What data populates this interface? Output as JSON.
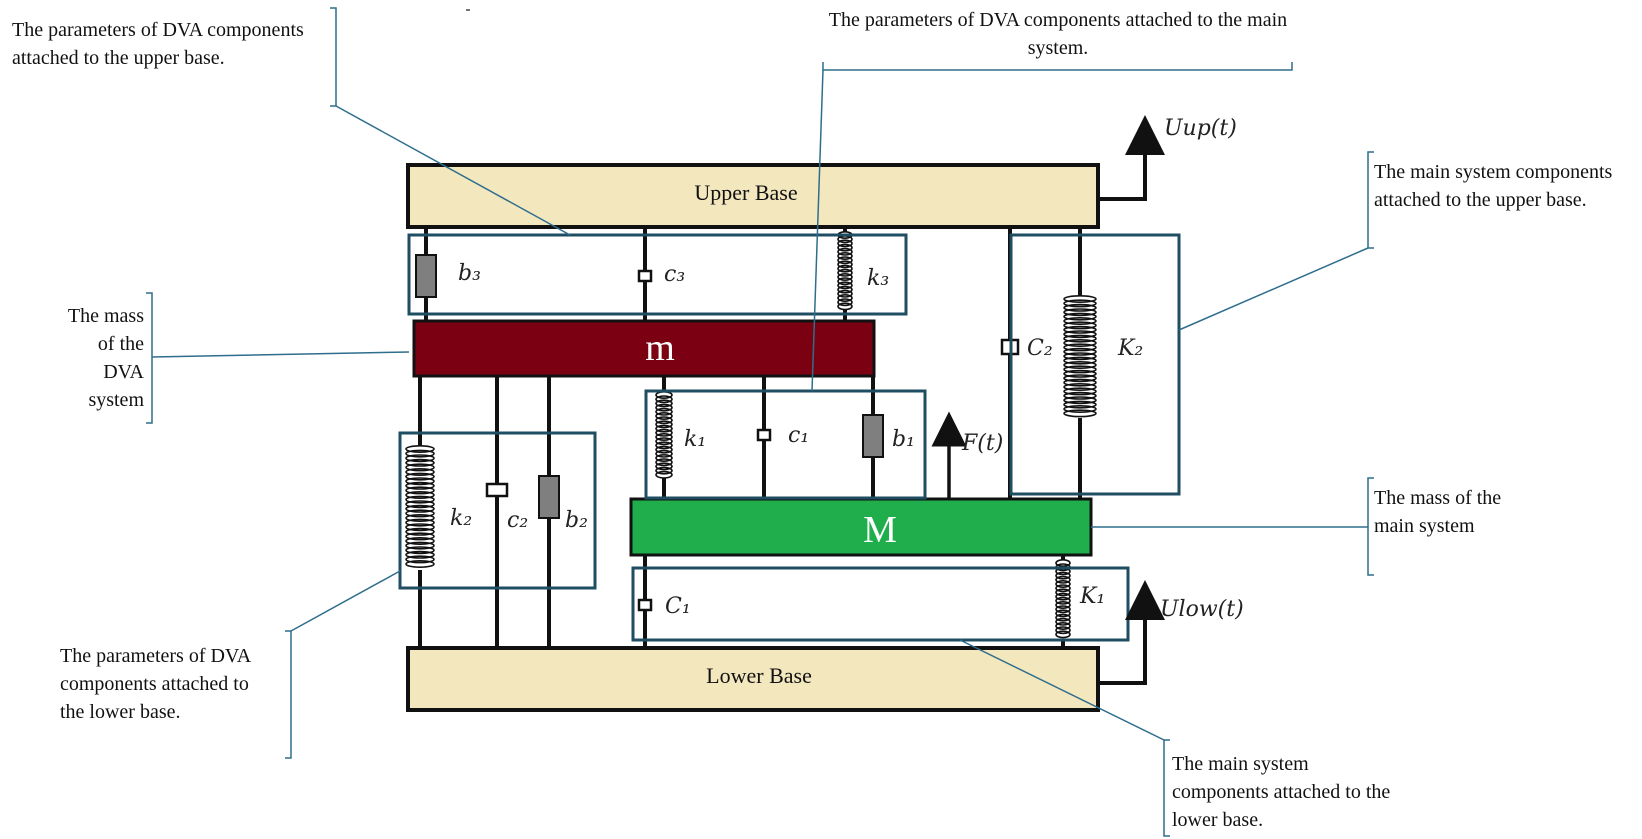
{
  "colors": {
    "base_fill": "#F3E7BE",
    "dva_mass_fill": "#7B0012",
    "main_mass_fill": "#1FAE4B",
    "group_box": "#1F4E63",
    "leader_line": "#2E6E8C",
    "damper_block": "#7F7F7F"
  },
  "bases": {
    "upper": "Upper Base",
    "lower": "Lower Base"
  },
  "masses": {
    "dva": "m",
    "main": "M"
  },
  "symbols": {
    "b3": "b₃",
    "c3": "c₃",
    "k3": "k₃",
    "k1": "k₁",
    "c1": "c₁",
    "b1": "b₁",
    "k2": "k₂",
    "c2": "c₂",
    "b2": "b₂",
    "C2": "C₂",
    "K2": "K₂",
    "C1": "C₁",
    "K1": "K₁",
    "F": "F(t)",
    "Uup": "Uup(t)",
    "Ulow": "Ulow(t)"
  },
  "callouts": {
    "dva_upper": "The parameters of DVA components attached to the upper base.",
    "dva_main": "The parameters of DVA components attached to the main system.",
    "main_upper": "The main system components attached to the upper base.",
    "dva_mass": "The mass of the DVA system",
    "main_mass": "The mass of the main system",
    "dva_lower": "The parameters of DVA components attached to the lower base.",
    "main_lower": "The main system components attached to the lower base."
  }
}
